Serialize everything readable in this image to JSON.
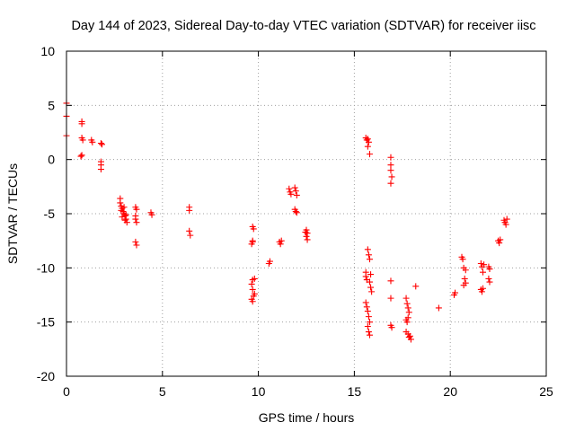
{
  "chart_data": {
    "type": "scatter",
    "title": "Day 144 of 2023, Sidereal Day-to-day VTEC variation (SDTVAR) for receiver iisc",
    "xlabel": "GPS time / hours",
    "ylabel": "SDTVAR / TECUs",
    "xlim": [
      0,
      25
    ],
    "ylim": [
      -20,
      10
    ],
    "xticks": [
      0,
      5,
      10,
      15,
      20,
      25
    ],
    "yticks": [
      -20,
      -15,
      -10,
      -5,
      0,
      5,
      10
    ],
    "grid": true,
    "marker": "plus",
    "color": "#ff0000",
    "series": [
      {
        "name": "SDTVAR",
        "points": [
          [
            0.0,
            5.2
          ],
          [
            0.0,
            4.0
          ],
          [
            0.0,
            2.2
          ],
          [
            0.8,
            3.5
          ],
          [
            0.8,
            3.3
          ],
          [
            0.8,
            2.0
          ],
          [
            0.85,
            1.8
          ],
          [
            0.8,
            0.4
          ],
          [
            0.75,
            0.3
          ],
          [
            1.3,
            1.8
          ],
          [
            1.35,
            1.6
          ],
          [
            1.8,
            1.5
          ],
          [
            1.85,
            1.4
          ],
          [
            1.8,
            -0.2
          ],
          [
            1.8,
            -0.5
          ],
          [
            1.8,
            -0.9
          ],
          [
            2.8,
            -3.6
          ],
          [
            2.8,
            -4.0
          ],
          [
            2.85,
            -4.3
          ],
          [
            2.9,
            -4.5
          ],
          [
            2.95,
            -4.8
          ],
          [
            3.0,
            -5.0
          ],
          [
            3.05,
            -5.2
          ],
          [
            3.1,
            -5.5
          ],
          [
            3.15,
            -5.8
          ],
          [
            2.85,
            -4.7
          ],
          [
            3.0,
            -4.4
          ],
          [
            3.1,
            -5.1
          ],
          [
            2.9,
            -5.3
          ],
          [
            3.05,
            -5.6
          ],
          [
            3.6,
            -4.4
          ],
          [
            3.65,
            -4.6
          ],
          [
            3.6,
            -5.2
          ],
          [
            3.6,
            -5.5
          ],
          [
            3.65,
            -5.8
          ],
          [
            3.6,
            -7.6
          ],
          [
            3.65,
            -7.9
          ],
          [
            4.4,
            -4.9
          ],
          [
            4.45,
            -5.1
          ],
          [
            6.4,
            -4.4
          ],
          [
            6.4,
            -4.7
          ],
          [
            6.4,
            -6.6
          ],
          [
            6.45,
            -7.0
          ],
          [
            9.7,
            -6.2
          ],
          [
            9.75,
            -6.4
          ],
          [
            9.7,
            -7.5
          ],
          [
            9.65,
            -7.8
          ],
          [
            9.7,
            -7.6
          ],
          [
            9.7,
            -11.1
          ],
          [
            9.65,
            -11.5
          ],
          [
            9.7,
            -12.0
          ],
          [
            9.65,
            -12.9
          ],
          [
            9.7,
            -13.1
          ],
          [
            9.75,
            -12.6
          ],
          [
            9.8,
            -12.4
          ],
          [
            9.8,
            -11.0
          ],
          [
            10.6,
            -9.4
          ],
          [
            10.55,
            -9.6
          ],
          [
            11.1,
            -7.6
          ],
          [
            11.2,
            -7.5
          ],
          [
            11.15,
            -7.8
          ],
          [
            11.6,
            -2.7
          ],
          [
            11.65,
            -3.0
          ],
          [
            11.7,
            -3.2
          ],
          [
            11.9,
            -2.6
          ],
          [
            11.95,
            -2.9
          ],
          [
            12.0,
            -3.3
          ],
          [
            11.9,
            -4.6
          ],
          [
            11.95,
            -4.8
          ],
          [
            12.0,
            -4.9
          ],
          [
            12.5,
            -6.5
          ],
          [
            12.55,
            -6.8
          ],
          [
            12.5,
            -7.1
          ],
          [
            12.55,
            -7.4
          ],
          [
            12.45,
            -6.7
          ],
          [
            15.6,
            -10.4
          ],
          [
            15.6,
            -10.8
          ],
          [
            15.65,
            -11.1
          ],
          [
            15.6,
            -13.2
          ],
          [
            15.65,
            -13.6
          ],
          [
            15.7,
            -14.0
          ],
          [
            15.75,
            -14.5
          ],
          [
            15.8,
            -15.0
          ],
          [
            15.7,
            -15.4
          ],
          [
            15.75,
            -15.9
          ],
          [
            15.8,
            -16.2
          ],
          [
            15.7,
            -8.3
          ],
          [
            15.75,
            -8.8
          ],
          [
            15.8,
            -9.2
          ],
          [
            15.8,
            -11.3
          ],
          [
            15.85,
            -11.8
          ],
          [
            15.9,
            -12.2
          ],
          [
            15.85,
            -10.6
          ],
          [
            15.6,
            2.0
          ],
          [
            15.65,
            1.8
          ],
          [
            15.7,
            1.9
          ],
          [
            15.75,
            1.6
          ],
          [
            15.7,
            1.2
          ],
          [
            15.8,
            0.5
          ],
          [
            16.9,
            0.2
          ],
          [
            16.9,
            -0.5
          ],
          [
            16.9,
            -1.0
          ],
          [
            16.95,
            -1.6
          ],
          [
            16.9,
            -2.2
          ],
          [
            16.9,
            -11.2
          ],
          [
            16.9,
            -12.8
          ],
          [
            16.9,
            -15.3
          ],
          [
            16.95,
            -15.5
          ],
          [
            17.7,
            -12.8
          ],
          [
            17.75,
            -13.3
          ],
          [
            17.8,
            -13.7
          ],
          [
            17.85,
            -14.1
          ],
          [
            17.8,
            -14.6
          ],
          [
            17.75,
            -15.0
          ],
          [
            17.7,
            -14.8
          ],
          [
            17.7,
            -15.9
          ],
          [
            17.8,
            -16.1
          ],
          [
            17.9,
            -16.3
          ],
          [
            17.95,
            -16.6
          ],
          [
            17.85,
            -16.4
          ],
          [
            18.2,
            -11.7
          ],
          [
            19.4,
            -13.7
          ],
          [
            20.2,
            -12.5
          ],
          [
            20.25,
            -12.3
          ],
          [
            20.6,
            -9.0
          ],
          [
            20.65,
            -9.2
          ],
          [
            20.7,
            -10.0
          ],
          [
            20.8,
            -10.2
          ],
          [
            20.75,
            -11.0
          ],
          [
            20.8,
            -11.4
          ],
          [
            20.7,
            -11.6
          ],
          [
            21.6,
            -9.6
          ],
          [
            21.65,
            -9.9
          ],
          [
            21.7,
            -10.4
          ],
          [
            21.6,
            -12.0
          ],
          [
            21.65,
            -12.2
          ],
          [
            21.7,
            -11.9
          ],
          [
            21.75,
            -9.7
          ],
          [
            22.0,
            -9.9
          ],
          [
            22.05,
            -10.1
          ],
          [
            22.0,
            -11.0
          ],
          [
            22.05,
            -11.3
          ],
          [
            22.5,
            -7.5
          ],
          [
            22.55,
            -7.7
          ],
          [
            22.6,
            -7.4
          ],
          [
            22.8,
            -5.6
          ],
          [
            22.85,
            -5.8
          ],
          [
            22.9,
            -6.0
          ],
          [
            22.95,
            -5.5
          ]
        ]
      }
    ]
  }
}
